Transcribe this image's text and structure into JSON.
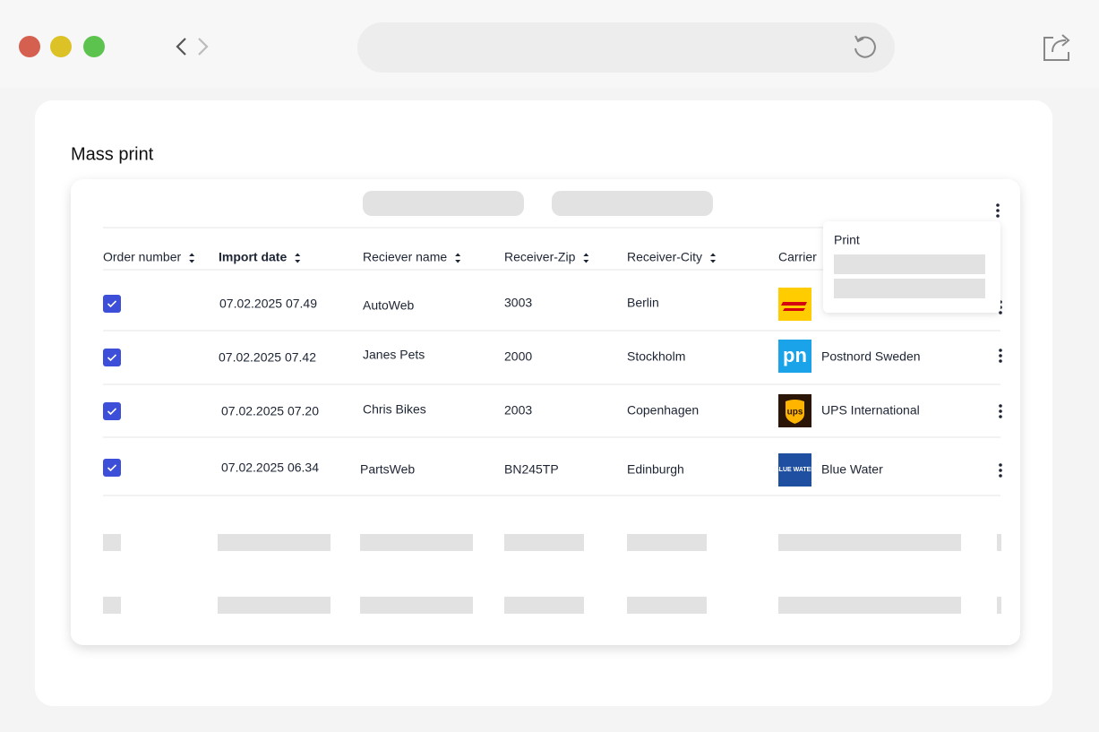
{
  "title": "Mass print",
  "table": {
    "columns": [
      "Order number",
      "Import date",
      "Reciever name",
      "Receiver-Zip",
      "Receiver-City",
      "Carrier"
    ],
    "rows": [
      {
        "import_date": "07.02.2025 07.49",
        "receiver_name": "AutoWeb",
        "zip": "3003",
        "city": "Berlin"
      },
      {
        "import_date": "07.02.2025 07.42",
        "receiver_name": "Janes Pets",
        "zip": "2000",
        "city": "Stockholm",
        "carrier": "Postnord Sweden",
        "logo_text": "pn"
      },
      {
        "import_date": "07.02.2025 07.20",
        "receiver_name": "Chris Bikes",
        "zip": "2003",
        "city": "Copenhagen",
        "carrier": "UPS International",
        "logo_text": "ups"
      },
      {
        "import_date": "07.02.2025 06.34",
        "receiver_name": "PartsWeb",
        "zip": "BN245TP",
        "city": "Edinburgh",
        "carrier": "Blue Water",
        "logo_text": "BLUE WATER"
      }
    ]
  },
  "menu": {
    "item": "Print"
  }
}
